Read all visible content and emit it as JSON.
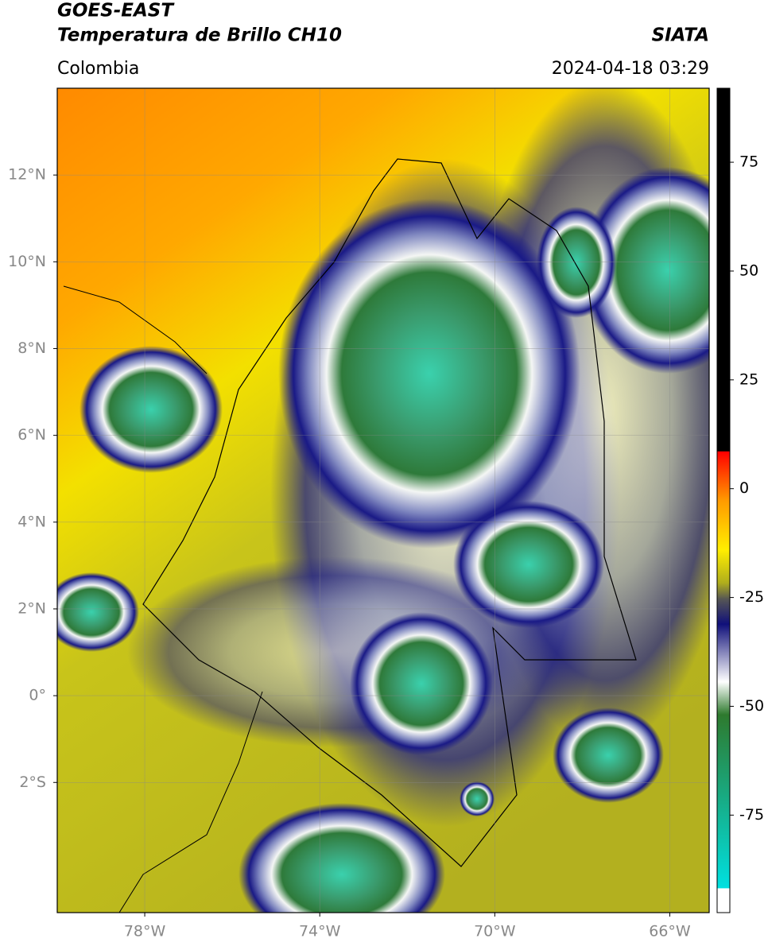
{
  "header": {
    "title": "GOES-EAST",
    "subtitle": "Temperatura de Brillo CH10",
    "region": "Colombia",
    "source": "SIATA",
    "datetime": "2024-04-18 03:29"
  },
  "map": {
    "lonlim": [
      -80,
      -65.1
    ],
    "latlim": [
      -5,
      14
    ],
    "lonticks": [
      {
        "value": -78,
        "label": "78°W"
      },
      {
        "value": -74,
        "label": "74°W"
      },
      {
        "value": -70,
        "label": "70°W"
      },
      {
        "value": -66,
        "label": "66°W"
      }
    ],
    "latticks": [
      {
        "value": 12,
        "label": "12°N"
      },
      {
        "value": 10,
        "label": "10°N"
      },
      {
        "value": 8,
        "label": "8°N"
      },
      {
        "value": 6,
        "label": "6°N"
      },
      {
        "value": 4,
        "label": "4°N"
      },
      {
        "value": 2,
        "label": "2°N"
      },
      {
        "value": 0,
        "label": "0°"
      },
      {
        "value": -2,
        "label": "2°S"
      }
    ]
  },
  "colorbar": {
    "lim": [
      -97.4,
      92
    ],
    "ticks": [
      75,
      50,
      25,
      0,
      -25,
      -50,
      -75
    ]
  }
}
